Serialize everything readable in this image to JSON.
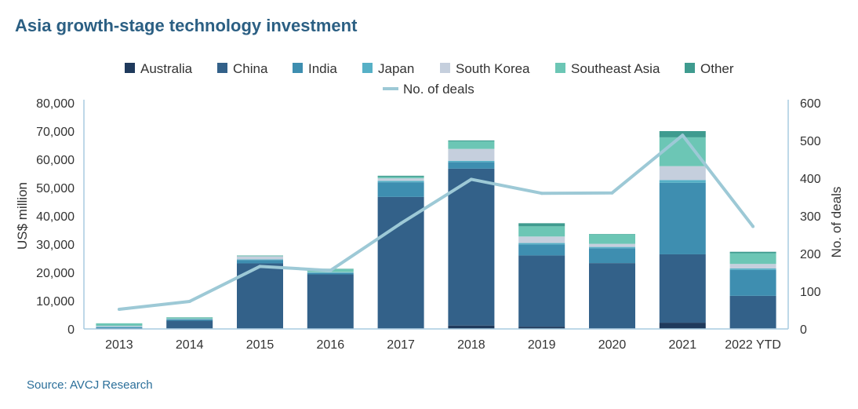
{
  "title": "Asia growth-stage technology investment",
  "source": "Source: AVCJ Research",
  "chart_data": {
    "type": "bar",
    "stacked": true,
    "categories": [
      "2013",
      "2014",
      "2015",
      "2016",
      "2017",
      "2018",
      "2019",
      "2020",
      "2021",
      "2022 YTD"
    ],
    "series": [
      {
        "name": "Australia",
        "color": "#1f3a5c",
        "values": [
          0,
          200,
          200,
          100,
          200,
          1200,
          800,
          200,
          2200,
          200
        ]
      },
      {
        "name": "China",
        "color": "#336189",
        "values": [
          300,
          2700,
          23000,
          19200,
          46500,
          55500,
          25200,
          23100,
          24200,
          11500
        ]
      },
      {
        "name": "India",
        "color": "#3e8eb0",
        "values": [
          300,
          500,
          1200,
          500,
          5200,
          2300,
          3900,
          5200,
          25300,
          9200
        ]
      },
      {
        "name": "Japan",
        "color": "#56b0c6",
        "values": [
          200,
          100,
          200,
          200,
          500,
          500,
          500,
          500,
          1000,
          500
        ]
      },
      {
        "name": "South Korea",
        "color": "#c5cfdd",
        "values": [
          300,
          100,
          1100,
          100,
          900,
          4200,
          2300,
          1100,
          4900,
          1600
        ]
      },
      {
        "name": "Southeast Asia",
        "color": "#6cc6b5",
        "values": [
          900,
          400,
          200,
          1100,
          500,
          2700,
          3600,
          3400,
          10200,
          3800
        ]
      },
      {
        "name": "Other",
        "color": "#3f9b8f",
        "values": [
          0,
          100,
          100,
          100,
          400,
          300,
          1100,
          100,
          2200,
          500
        ]
      }
    ],
    "line_series": {
      "name": "No. of deals",
      "color": "#9dc9d6",
      "axis": "right",
      "values": [
        52,
        73,
        166,
        155,
        280,
        397,
        360,
        361,
        514,
        272
      ]
    },
    "ylabel": "US$ million",
    "y2label": "No. of deals",
    "ylim": [
      0,
      80000
    ],
    "y2lim": [
      0,
      600
    ],
    "yticks": [
      "80,000",
      "70,000",
      "60,000",
      "50,000",
      "40,000",
      "30,000",
      "20,000",
      "10,000",
      "0"
    ],
    "y2ticks": [
      "600",
      "500",
      "400",
      "300",
      "200",
      "100",
      "0"
    ],
    "grid": false,
    "legend_position": "top"
  }
}
